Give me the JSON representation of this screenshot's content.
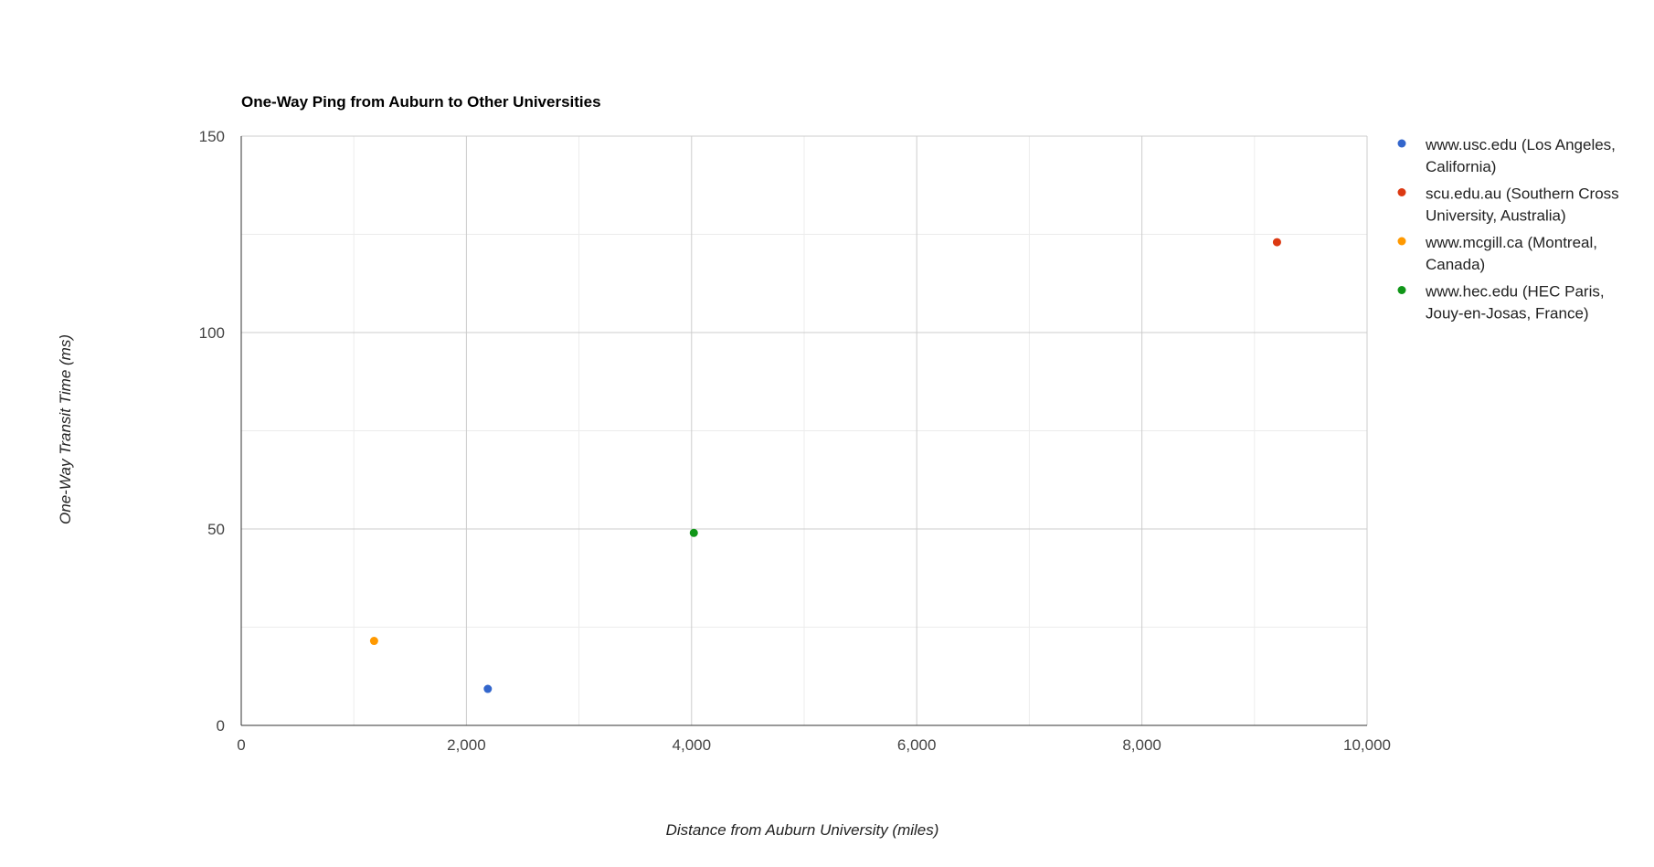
{
  "chart_data": {
    "type": "scatter",
    "title": "One-Way Ping from Auburn to Other Universities",
    "xlabel": "Distance from Auburn University (miles)",
    "ylabel": "One-Way Transit Time (ms)",
    "xlim": [
      0,
      10000
    ],
    "ylim": [
      0,
      150
    ],
    "x_ticks": [
      0,
      2000,
      4000,
      6000,
      8000,
      10000
    ],
    "x_tick_labels": [
      "0",
      "2,000",
      "4,000",
      "6,000",
      "8,000",
      "10,000"
    ],
    "y_ticks": [
      0,
      50,
      100,
      150
    ],
    "y_tick_labels": [
      "0",
      "50",
      "100",
      "150"
    ],
    "grid": true,
    "legend_position": "right",
    "series": [
      {
        "name": "www.usc.edu (Los Angeles, California)",
        "legend_lines": [
          "www.usc.edu (Los Angeles,",
          "California)"
        ],
        "color": "#3366cc",
        "points": [
          {
            "x": 2190,
            "y": 9.3
          }
        ]
      },
      {
        "name": "scu.edu.au (Southern Cross University, Australia)",
        "legend_lines": [
          "scu.edu.au (Southern Cross",
          "University, Australia)"
        ],
        "color": "#dc3912",
        "points": [
          {
            "x": 9200,
            "y": 123
          }
        ]
      },
      {
        "name": "www.mcgill.ca (Montreal, Canada)",
        "legend_lines": [
          "www.mcgill.ca (Montreal,",
          "Canada)"
        ],
        "color": "#ff9900",
        "points": [
          {
            "x": 1180,
            "y": 21.5
          }
        ]
      },
      {
        "name": "www.hec.edu (HEC Paris, Jouy-en-Josas, France)",
        "legend_lines": [
          "www.hec.edu (HEC Paris,",
          "Jouy-en-Josas, France)"
        ],
        "color": "#109618",
        "points": [
          {
            "x": 4020,
            "y": 49
          }
        ]
      }
    ]
  }
}
